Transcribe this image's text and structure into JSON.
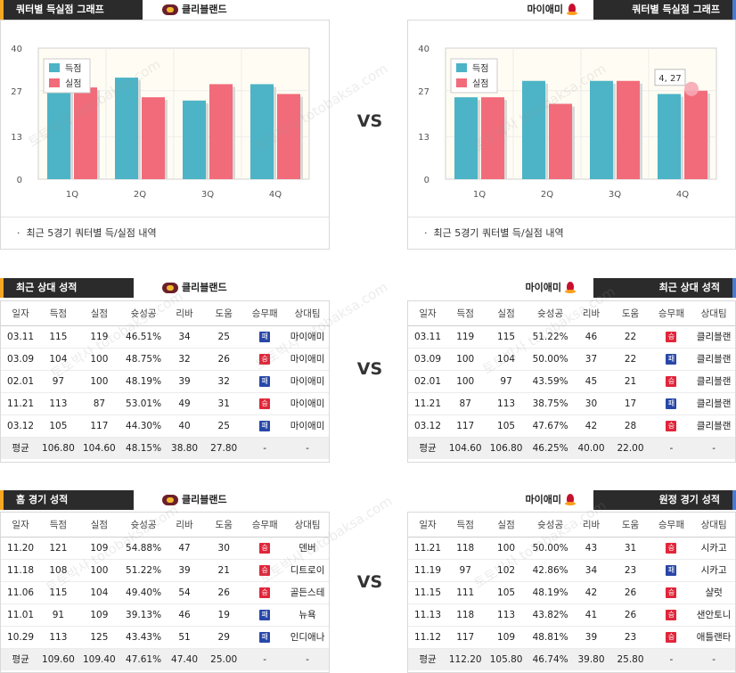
{
  "colors": {
    "score": "#4cb4c6",
    "allowed": "#f26b7a",
    "win": "#e0263a",
    "loss": "#2847a8"
  },
  "left_team": {
    "name": "클리블랜드",
    "logo_icon": "cavaliers-logo-icon"
  },
  "right_team": {
    "name": "마이애미",
    "logo_icon": "heat-logo-icon"
  },
  "vs_label": "VS",
  "watermark": [
    "토토박사",
    "totobaksa.com"
  ],
  "charts": {
    "title": "쿼터별 득실점 그래프",
    "footnote": "최근 5경기 쿼터별 득/실점 내역",
    "legend": [
      "득점",
      "실점"
    ],
    "tooltip": "4, 27"
  },
  "chart_data": [
    {
      "type": "bar",
      "categories": [
        "1Q",
        "2Q",
        "3Q",
        "4Q"
      ],
      "ylim": [
        0,
        40
      ],
      "yticks": [
        0,
        13,
        27,
        40
      ],
      "series": [
        {
          "name": "득점",
          "values": [
            29,
            31,
            24,
            29
          ]
        },
        {
          "name": "실점",
          "values": [
            28,
            25,
            29,
            26
          ]
        }
      ]
    },
    {
      "type": "bar",
      "categories": [
        "1Q",
        "2Q",
        "3Q",
        "4Q"
      ],
      "ylim": [
        0,
        40
      ],
      "yticks": [
        0,
        13,
        27,
        40
      ],
      "series": [
        {
          "name": "득점",
          "values": [
            25,
            30,
            30,
            26
          ]
        },
        {
          "name": "실점",
          "values": [
            25,
            23,
            30,
            27
          ]
        }
      ]
    }
  ],
  "columns": [
    "일자",
    "득점",
    "실점",
    "슛성공",
    "리바",
    "도움",
    "승무패",
    "상대팀"
  ],
  "wl_labels": {
    "win": "승",
    "loss": "패"
  },
  "sections": {
    "recent_left": {
      "title": "최근 상대 성적",
      "rows": [
        [
          "03.11",
          "115",
          "119",
          "46.51%",
          "34",
          "25",
          "loss",
          "마이애미"
        ],
        [
          "03.09",
          "104",
          "100",
          "48.75%",
          "32",
          "26",
          "win",
          "마이애미"
        ],
        [
          "02.01",
          "97",
          "100",
          "48.19%",
          "39",
          "32",
          "loss",
          "마이애미"
        ],
        [
          "11.21",
          "113",
          "87",
          "53.01%",
          "49",
          "31",
          "win",
          "마이애미"
        ],
        [
          "03.12",
          "105",
          "117",
          "44.30%",
          "40",
          "25",
          "loss",
          "마이애미"
        ]
      ],
      "avg": [
        "평균",
        "106.80",
        "104.60",
        "48.15%",
        "38.80",
        "27.80",
        "-",
        "-"
      ]
    },
    "recent_right": {
      "title": "최근 상대 성적",
      "rows": [
        [
          "03.11",
          "119",
          "115",
          "51.22%",
          "46",
          "22",
          "win",
          "클리블랜"
        ],
        [
          "03.09",
          "100",
          "104",
          "50.00%",
          "37",
          "22",
          "loss",
          "클리블랜"
        ],
        [
          "02.01",
          "100",
          "97",
          "43.59%",
          "45",
          "21",
          "win",
          "클리블랜"
        ],
        [
          "11.21",
          "87",
          "113",
          "38.75%",
          "30",
          "17",
          "loss",
          "클리블랜"
        ],
        [
          "03.12",
          "117",
          "105",
          "47.67%",
          "42",
          "28",
          "win",
          "클리블랜"
        ]
      ],
      "avg": [
        "평균",
        "104.60",
        "106.80",
        "46.25%",
        "40.00",
        "22.00",
        "-",
        "-"
      ]
    },
    "home_left": {
      "title": "홈 경기 성적",
      "rows": [
        [
          "11.20",
          "121",
          "109",
          "54.88%",
          "47",
          "30",
          "win",
          "덴버"
        ],
        [
          "11.18",
          "108",
          "100",
          "51.22%",
          "39",
          "21",
          "win",
          "디트로이"
        ],
        [
          "11.06",
          "115",
          "104",
          "49.40%",
          "54",
          "26",
          "win",
          "골든스테"
        ],
        [
          "11.01",
          "91",
          "109",
          "39.13%",
          "46",
          "19",
          "loss",
          "뉴욕"
        ],
        [
          "10.29",
          "113",
          "125",
          "43.43%",
          "51",
          "29",
          "loss",
          "인디애나"
        ]
      ],
      "avg": [
        "평균",
        "109.60",
        "109.40",
        "47.61%",
        "47.40",
        "25.00",
        "-",
        "-"
      ]
    },
    "away_right": {
      "title": "원정 경기 성적",
      "rows": [
        [
          "11.21",
          "118",
          "100",
          "50.00%",
          "43",
          "31",
          "win",
          "시카고"
        ],
        [
          "11.19",
          "97",
          "102",
          "42.86%",
          "34",
          "23",
          "loss",
          "시카고"
        ],
        [
          "11.15",
          "111",
          "105",
          "48.19%",
          "42",
          "26",
          "win",
          "샬럿"
        ],
        [
          "11.13",
          "118",
          "113",
          "43.82%",
          "41",
          "26",
          "win",
          "샌안토니"
        ],
        [
          "11.12",
          "117",
          "109",
          "48.81%",
          "39",
          "23",
          "win",
          "애틀랜타"
        ]
      ],
      "avg": [
        "평균",
        "112.20",
        "105.80",
        "46.74%",
        "39.80",
        "25.80",
        "-",
        "-"
      ]
    }
  }
}
